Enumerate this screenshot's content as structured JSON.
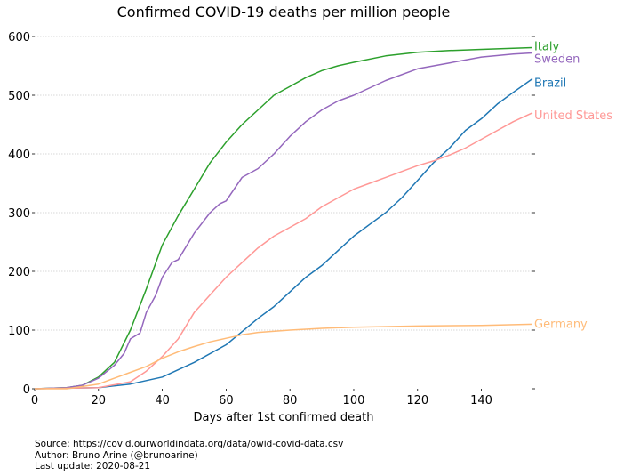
{
  "chart_data": {
    "type": "line",
    "title": "Confirmed COVID-19 deaths per million people",
    "xlabel": "Days after 1st confirmed death",
    "ylabel": "",
    "xlim": [
      0,
      156
    ],
    "ylim": [
      0,
      600
    ],
    "xticks": [
      0,
      20,
      40,
      60,
      80,
      100,
      120,
      140
    ],
    "yticks": [
      0,
      100,
      200,
      300,
      400,
      500,
      600
    ],
    "grid": "horizontal dotted",
    "series": [
      {
        "name": "Italy",
        "color": "#2ca02c",
        "x": [
          0,
          10,
          15,
          20,
          25,
          30,
          35,
          40,
          45,
          50,
          55,
          60,
          65,
          70,
          75,
          80,
          85,
          90,
          95,
          100,
          110,
          120,
          130,
          140,
          150,
          156
        ],
        "y": [
          0,
          2,
          6,
          20,
          45,
          100,
          170,
          245,
          295,
          340,
          385,
          420,
          450,
          475,
          500,
          515,
          530,
          542,
          550,
          556,
          567,
          573,
          576,
          578,
          580,
          581
        ]
      },
      {
        "name": "Sweden",
        "color": "#9467bd",
        "x": [
          0,
          10,
          15,
          20,
          25,
          28,
          30,
          33,
          35,
          38,
          40,
          43,
          45,
          50,
          55,
          58,
          60,
          65,
          70,
          75,
          80,
          85,
          90,
          95,
          100,
          110,
          120,
          130,
          140,
          150,
          156
        ],
        "y": [
          0,
          2,
          6,
          18,
          40,
          60,
          85,
          95,
          130,
          160,
          190,
          215,
          220,
          265,
          300,
          315,
          320,
          360,
          375,
          400,
          430,
          455,
          475,
          490,
          500,
          525,
          545,
          555,
          565,
          570,
          572
        ]
      },
      {
        "name": "Brazil",
        "color": "#1f77b4",
        "x": [
          0,
          20,
          30,
          40,
          50,
          60,
          70,
          75,
          80,
          85,
          90,
          95,
          100,
          105,
          110,
          115,
          120,
          125,
          130,
          135,
          140,
          145,
          150,
          156
        ],
        "y": [
          0,
          2,
          8,
          20,
          45,
          75,
          120,
          140,
          165,
          190,
          210,
          235,
          260,
          280,
          300,
          325,
          355,
          385,
          410,
          440,
          460,
          485,
          505,
          528
        ]
      },
      {
        "name": "United States",
        "color": "#ff9896",
        "x": [
          0,
          20,
          30,
          35,
          40,
          45,
          50,
          55,
          60,
          65,
          70,
          75,
          80,
          85,
          90,
          95,
          100,
          105,
          110,
          115,
          120,
          125,
          130,
          135,
          140,
          145,
          150,
          156
        ],
        "y": [
          0,
          2,
          12,
          30,
          55,
          85,
          130,
          160,
          190,
          215,
          240,
          260,
          275,
          290,
          310,
          325,
          340,
          350,
          360,
          370,
          380,
          388,
          398,
          410,
          425,
          440,
          455,
          470
        ]
      },
      {
        "name": "Germany",
        "color": "#ffbb78",
        "x": [
          0,
          10,
          20,
          25,
          30,
          35,
          40,
          45,
          50,
          55,
          60,
          65,
          70,
          80,
          90,
          100,
          120,
          140,
          156
        ],
        "y": [
          0,
          0,
          8,
          18,
          28,
          38,
          52,
          63,
          72,
          80,
          86,
          92,
          96,
          100,
          103,
          105,
          107,
          108,
          110
        ]
      }
    ]
  },
  "footer": {
    "source": "Source: https://covid.ourworldindata.org/data/owid-covid-data.csv",
    "author": "Author: Bruno Arine (@brunoarine)",
    "update": "Last update: 2020-08-21"
  }
}
